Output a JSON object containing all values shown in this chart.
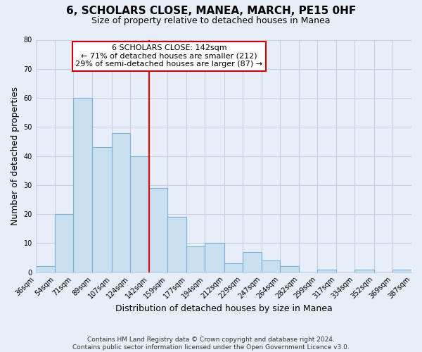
{
  "title": "6, SCHOLARS CLOSE, MANEA, MARCH, PE15 0HF",
  "subtitle": "Size of property relative to detached houses in Manea",
  "xlabel": "Distribution of detached houses by size in Manea",
  "ylabel": "Number of detached properties",
  "bar_edges": [
    36,
    54,
    71,
    89,
    107,
    124,
    142,
    159,
    177,
    194,
    212,
    229,
    247,
    264,
    282,
    299,
    317,
    334,
    352,
    369,
    387
  ],
  "bar_heights": [
    2,
    20,
    60,
    43,
    48,
    40,
    29,
    19,
    9,
    10,
    3,
    7,
    4,
    2,
    0,
    1,
    0,
    1,
    0,
    1
  ],
  "bar_color": "#c8dff0",
  "bar_edgecolor": "#7ab0d4",
  "reference_line_x": 142,
  "reference_line_color": "red",
  "annotation_title": "6 SCHOLARS CLOSE: 142sqm",
  "annotation_line1": "← 71% of detached houses are smaller (212)",
  "annotation_line2": "29% of semi-detached houses are larger (87) →",
  "annotation_box_color": "white",
  "annotation_box_edgecolor": "#cc0000",
  "ylim": [
    0,
    80
  ],
  "yticks": [
    0,
    10,
    20,
    30,
    40,
    50,
    60,
    70,
    80
  ],
  "footer_line1": "Contains HM Land Registry data © Crown copyright and database right 2024.",
  "footer_line2": "Contains public sector information licensed under the Open Government Licence v3.0.",
  "bg_color": "#e8eef8",
  "plot_bg_color": "#e8eef8",
  "grid_color": "#c5cfe0",
  "tick_label_size": 7,
  "xlabel_size": 9,
  "ylabel_size": 9,
  "title_fontsize": 11,
  "subtitle_fontsize": 9
}
